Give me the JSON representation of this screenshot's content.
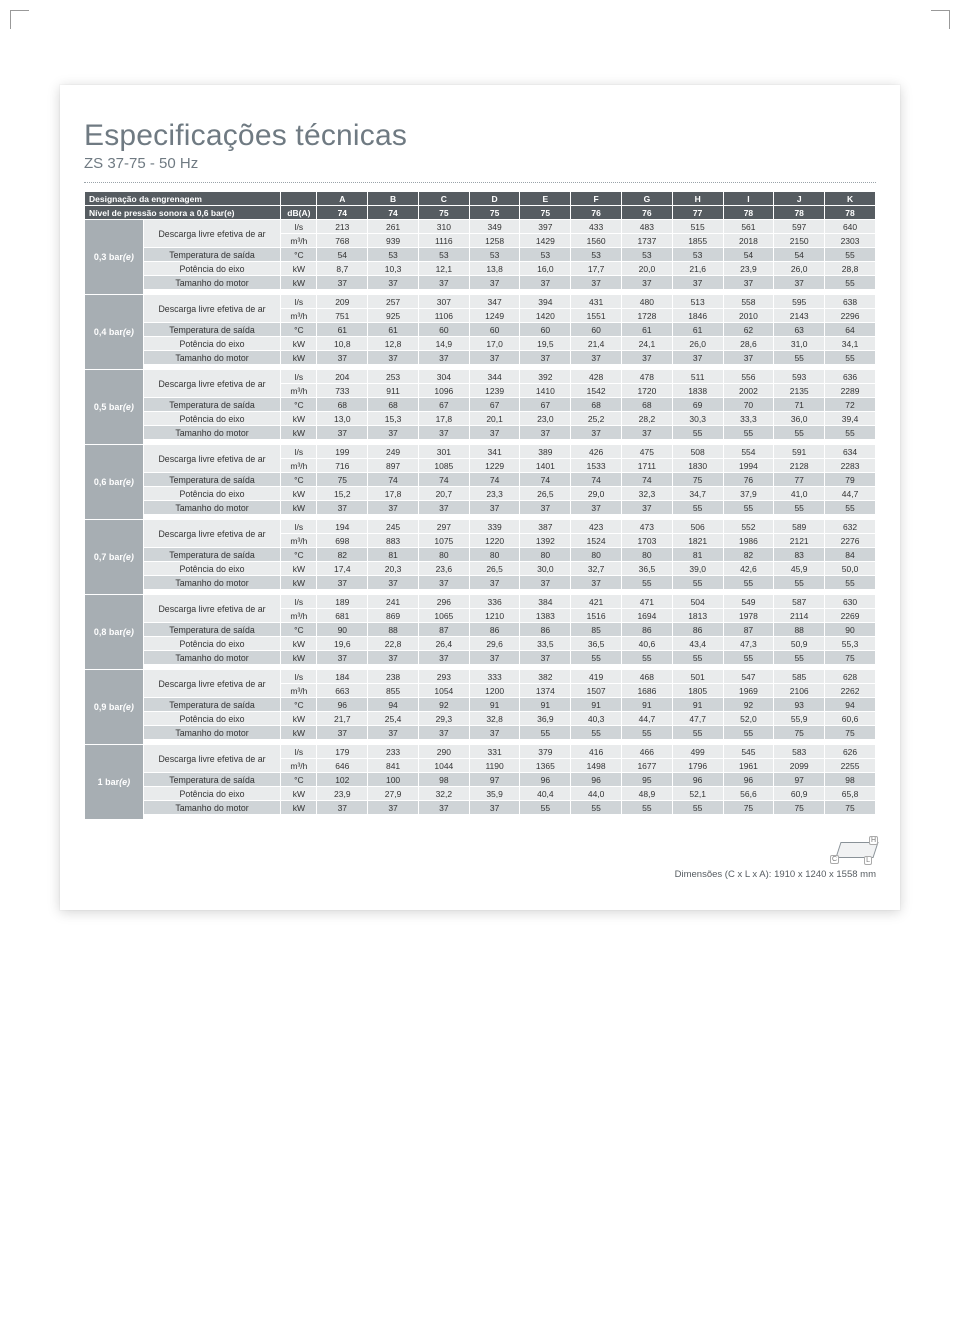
{
  "title": "Especificações técnicas",
  "subtitle": "ZS 37-75 - 50 Hz",
  "columns": [
    "A",
    "B",
    "C",
    "D",
    "E",
    "F",
    "G",
    "H",
    "I",
    "J",
    "K"
  ],
  "header_label_gear": "Designação da engrenagem",
  "header_label_sound": "Nível de pressão sonora a 0,6 bar(e)",
  "header_sound_unit": "dB(A)",
  "sound_row": [
    "74",
    "74",
    "75",
    "75",
    "75",
    "76",
    "76",
    "77",
    "78",
    "78",
    "78"
  ],
  "row_labels": {
    "fad": "Descarga livre efetiva de ar",
    "temp": "Temperatura de saída",
    "shaft": "Potência do eixo",
    "motor": "Tamanho do motor"
  },
  "units": {
    "ls": "l/s",
    "m3h": "m³/h",
    "c": "°C",
    "kw": "kW"
  },
  "sections": [
    {
      "label": "0,3 bar(e)",
      "ls": [
        "213",
        "261",
        "310",
        "349",
        "397",
        "433",
        "483",
        "515",
        "561",
        "597",
        "640"
      ],
      "m3h": [
        "768",
        "939",
        "1116",
        "1258",
        "1429",
        "1560",
        "1737",
        "1855",
        "2018",
        "2150",
        "2303"
      ],
      "temp": [
        "54",
        "53",
        "53",
        "53",
        "53",
        "53",
        "53",
        "53",
        "54",
        "54",
        "55"
      ],
      "kw": [
        "8,7",
        "10,3",
        "12,1",
        "13,8",
        "16,0",
        "17,7",
        "20,0",
        "21,6",
        "23,9",
        "26,0",
        "28,8"
      ],
      "motor": [
        "37",
        "37",
        "37",
        "37",
        "37",
        "37",
        "37",
        "37",
        "37",
        "37",
        "55"
      ]
    },
    {
      "label": "0,4 bar(e)",
      "ls": [
        "209",
        "257",
        "307",
        "347",
        "394",
        "431",
        "480",
        "513",
        "558",
        "595",
        "638"
      ],
      "m3h": [
        "751",
        "925",
        "1106",
        "1249",
        "1420",
        "1551",
        "1728",
        "1846",
        "2010",
        "2143",
        "2296"
      ],
      "temp": [
        "61",
        "61",
        "60",
        "60",
        "60",
        "60",
        "61",
        "61",
        "62",
        "63",
        "64"
      ],
      "kw": [
        "10,8",
        "12,8",
        "14,9",
        "17,0",
        "19,5",
        "21,4",
        "24,1",
        "26,0",
        "28,6",
        "31,0",
        "34,1"
      ],
      "motor": [
        "37",
        "37",
        "37",
        "37",
        "37",
        "37",
        "37",
        "37",
        "37",
        "55",
        "55"
      ]
    },
    {
      "label": "0,5 bar(e)",
      "ls": [
        "204",
        "253",
        "304",
        "344",
        "392",
        "428",
        "478",
        "511",
        "556",
        "593",
        "636"
      ],
      "m3h": [
        "733",
        "911",
        "1096",
        "1239",
        "1410",
        "1542",
        "1720",
        "1838",
        "2002",
        "2135",
        "2289"
      ],
      "temp": [
        "68",
        "68",
        "67",
        "67",
        "67",
        "68",
        "68",
        "69",
        "70",
        "71",
        "72"
      ],
      "kw": [
        "13,0",
        "15,3",
        "17,8",
        "20,1",
        "23,0",
        "25,2",
        "28,2",
        "30,3",
        "33,3",
        "36,0",
        "39,4"
      ],
      "motor": [
        "37",
        "37",
        "37",
        "37",
        "37",
        "37",
        "37",
        "55",
        "55",
        "55",
        "55"
      ]
    },
    {
      "label": "0,6 bar(e)",
      "ls": [
        "199",
        "249",
        "301",
        "341",
        "389",
        "426",
        "475",
        "508",
        "554",
        "591",
        "634"
      ],
      "m3h": [
        "716",
        "897",
        "1085",
        "1229",
        "1401",
        "1533",
        "1711",
        "1830",
        "1994",
        "2128",
        "2283"
      ],
      "temp": [
        "75",
        "74",
        "74",
        "74",
        "74",
        "74",
        "74",
        "75",
        "76",
        "77",
        "79"
      ],
      "kw": [
        "15,2",
        "17,8",
        "20,7",
        "23,3",
        "26,5",
        "29,0",
        "32,3",
        "34,7",
        "37,9",
        "41,0",
        "44,7"
      ],
      "motor": [
        "37",
        "37",
        "37",
        "37",
        "37",
        "37",
        "37",
        "55",
        "55",
        "55",
        "55"
      ]
    },
    {
      "label": "0,7 bar(e)",
      "ls": [
        "194",
        "245",
        "297",
        "339",
        "387",
        "423",
        "473",
        "506",
        "552",
        "589",
        "632"
      ],
      "m3h": [
        "698",
        "883",
        "1075",
        "1220",
        "1392",
        "1524",
        "1703",
        "1821",
        "1986",
        "2121",
        "2276"
      ],
      "temp": [
        "82",
        "81",
        "80",
        "80",
        "80",
        "80",
        "80",
        "81",
        "82",
        "83",
        "84"
      ],
      "kw": [
        "17,4",
        "20,3",
        "23,6",
        "26,5",
        "30,0",
        "32,7",
        "36,5",
        "39,0",
        "42,6",
        "45,9",
        "50,0"
      ],
      "motor": [
        "37",
        "37",
        "37",
        "37",
        "37",
        "37",
        "55",
        "55",
        "55",
        "55",
        "55"
      ]
    },
    {
      "label": "0,8 bar(e)",
      "ls": [
        "189",
        "241",
        "296",
        "336",
        "384",
        "421",
        "471",
        "504",
        "549",
        "587",
        "630"
      ],
      "m3h": [
        "681",
        "869",
        "1065",
        "1210",
        "1383",
        "1516",
        "1694",
        "1813",
        "1978",
        "2114",
        "2269"
      ],
      "temp": [
        "90",
        "88",
        "87",
        "86",
        "86",
        "85",
        "86",
        "86",
        "87",
        "88",
        "90"
      ],
      "kw": [
        "19,6",
        "22,8",
        "26,4",
        "29,6",
        "33,5",
        "36,5",
        "40,6",
        "43,4",
        "47,3",
        "50,9",
        "55,3"
      ],
      "motor": [
        "37",
        "37",
        "37",
        "37",
        "37",
        "55",
        "55",
        "55",
        "55",
        "55",
        "75"
      ]
    },
    {
      "label": "0,9 bar(e)",
      "ls": [
        "184",
        "238",
        "293",
        "333",
        "382",
        "419",
        "468",
        "501",
        "547",
        "585",
        "628"
      ],
      "m3h": [
        "663",
        "855",
        "1054",
        "1200",
        "1374",
        "1507",
        "1686",
        "1805",
        "1969",
        "2106",
        "2262"
      ],
      "temp": [
        "96",
        "94",
        "92",
        "91",
        "91",
        "91",
        "91",
        "91",
        "92",
        "93",
        "94"
      ],
      "kw": [
        "21,7",
        "25,4",
        "29,3",
        "32,8",
        "36,9",
        "40,3",
        "44,7",
        "47,7",
        "52,0",
        "55,9",
        "60,6"
      ],
      "motor": [
        "37",
        "37",
        "37",
        "37",
        "55",
        "55",
        "55",
        "55",
        "55",
        "75",
        "75"
      ]
    },
    {
      "label": "1 bar(e)",
      "ls": [
        "179",
        "233",
        "290",
        "331",
        "379",
        "416",
        "466",
        "499",
        "545",
        "583",
        "626"
      ],
      "m3h": [
        "646",
        "841",
        "1044",
        "1190",
        "1365",
        "1498",
        "1677",
        "1796",
        "1961",
        "2099",
        "2255"
      ],
      "temp": [
        "102",
        "100",
        "98",
        "97",
        "96",
        "96",
        "95",
        "96",
        "96",
        "97",
        "98"
      ],
      "kw": [
        "23,9",
        "27,9",
        "32,2",
        "35,9",
        "40,4",
        "44,0",
        "48,9",
        "52,1",
        "56,6",
        "60,9",
        "65,8"
      ],
      "motor": [
        "37",
        "37",
        "37",
        "37",
        "55",
        "55",
        "55",
        "55",
        "75",
        "75",
        "75"
      ]
    }
  ],
  "dimensions_label": "Dimensões (C x L x A): 1910 x 1240 x 1558 mm",
  "colors": {
    "header_bg": "#565c61",
    "section_label_bg": "#a7aeb3",
    "band_light": "#e9ebec",
    "band_mid": "#cfd4d7",
    "title_color": "#6f7a82"
  }
}
